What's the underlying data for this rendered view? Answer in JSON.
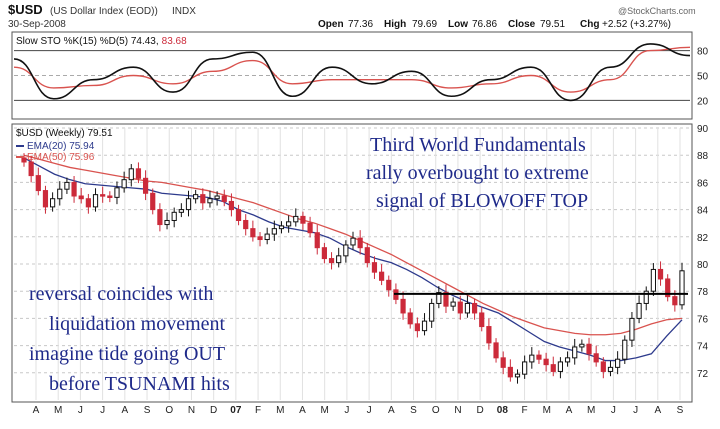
{
  "header": {
    "symbol": "$USD",
    "name": "(US Dollar Index (EOD))",
    "exchange": "INDX",
    "date": "30-Sep-2008",
    "open_label": "Open",
    "open_value": "77.36",
    "high_label": "High",
    "high_value": "79.69",
    "low_label": "Low",
    "low_value": "76.86",
    "close_label": "Close",
    "close_value": "79.51",
    "chg_label": "Chg",
    "chg_value": "+2.52 (+3.27%)",
    "watermark": "@StockCharts.com"
  },
  "colors": {
    "bull": "#111111",
    "bear": "#cc2a3a",
    "ema20": "#2d3a8c",
    "ema50": "#d9534f",
    "note": "#1f2a8a"
  },
  "chart_data": [
    {
      "type": "line",
      "title": "Slow STO %K(15) %D(5) 74.43, 83.68",
      "title_prefix": "Slow STO %K(15) %D(5) 74.43,",
      "title_d_value": "83.68",
      "x": [
        "Apr 07",
        "May 07",
        "Jun 07",
        "Jul 07",
        "Aug 07",
        "Sep 07",
        "Oct 07",
        "Nov 07",
        "Dec 07",
        "Jan 08",
        "Feb 08",
        "Mar 08",
        "Apr 08",
        "May 08",
        "Jun 08",
        "Jul 08",
        "Aug 08",
        "Sep 08"
      ],
      "ylim": [
        0,
        100
      ],
      "yticks": [
        20,
        50,
        80
      ],
      "series": [
        {
          "name": "%K",
          "values": [
            70,
            22,
            45,
            60,
            30,
            70,
            78,
            25,
            60,
            40,
            55,
            25,
            45,
            60,
            20,
            60,
            88,
            74
          ]
        },
        {
          "name": "%D",
          "values": [
            60,
            35,
            38,
            50,
            40,
            55,
            68,
            40,
            45,
            45,
            45,
            35,
            40,
            50,
            30,
            45,
            80,
            84
          ]
        }
      ]
    },
    {
      "type": "candlestick",
      "title": "$USD (Weekly) 79.51",
      "ylim": [
        70,
        90
      ],
      "yticks": [
        72,
        74,
        76,
        78,
        80,
        82,
        84,
        86,
        88,
        90
      ],
      "x_labels": [
        "A",
        "M",
        "J",
        "J",
        "A",
        "S",
        "O",
        "N",
        "D",
        "07",
        "F",
        "M",
        "A",
        "M",
        "J",
        "J",
        "A",
        "S",
        "O",
        "N",
        "D",
        "08",
        "F",
        "M",
        "A",
        "M",
        "J",
        "J",
        "A",
        "S"
      ],
      "closes": [
        87.5,
        86.5,
        85.4,
        84.2,
        84.8,
        85.5,
        86.0,
        85.0,
        84.8,
        84.2,
        85.1,
        85.0,
        84.9,
        85.6,
        86.2,
        87.0,
        86.3,
        85.2,
        84.0,
        82.9,
        83.2,
        83.8,
        84.0,
        84.8,
        85.1,
        84.5,
        84.8,
        85.0,
        84.6,
        84.0,
        83.2,
        82.6,
        82.0,
        81.8,
        82.2,
        82.6,
        82.8,
        83.1,
        83.5,
        83.0,
        82.3,
        81.2,
        80.4,
        80.1,
        80.6,
        81.4,
        81.9,
        81.2,
        80.1,
        79.4,
        78.8,
        78.1,
        77.4,
        76.4,
        75.6,
        75.1,
        75.8,
        77.1,
        77.9,
        76.9,
        77.2,
        76.4,
        77.1,
        76.4,
        75.4,
        74.2,
        73.1,
        72.4,
        71.7,
        71.9,
        72.8,
        73.3,
        73.0,
        72.6,
        72.1,
        72.8,
        73.1,
        73.9,
        74.1,
        73.4,
        72.8,
        72.1,
        72.4,
        73.0,
        74.4,
        76.0,
        77.1,
        78.0,
        79.6,
        78.9,
        77.6,
        77.0,
        79.5
      ],
      "series": [
        {
          "name": "EMA(20) 75.94",
          "values": [
            87.8,
            87.2,
            86.6,
            86.2,
            85.9,
            85.8,
            85.7,
            85.6,
            85.5,
            85.2,
            85.1,
            85.0,
            84.9,
            84.6,
            84.0,
            83.6,
            83.1,
            82.7,
            82.5,
            82.3,
            81.9,
            81.3,
            80.8,
            80.4,
            80.1,
            79.6,
            79.0,
            78.3,
            77.7,
            77.2,
            76.8,
            76.4,
            75.7,
            75.0,
            74.3,
            73.9,
            73.6,
            73.3,
            72.9,
            72.9,
            73.1,
            73.4,
            74.7,
            75.9
          ]
        },
        {
          "name": "EMA(50) 75.96",
          "values": [
            88.0,
            87.7,
            87.4,
            87.1,
            86.9,
            86.7,
            86.5,
            86.3,
            86.1,
            86.0,
            85.8,
            85.6,
            85.4,
            85.1,
            84.8,
            84.5,
            84.1,
            83.7,
            83.3,
            83.0,
            82.6,
            82.2,
            81.7,
            81.2,
            80.7,
            80.1,
            79.5,
            78.9,
            78.3,
            77.7,
            77.1,
            76.6,
            76.1,
            75.7,
            75.3,
            75.1,
            74.9,
            74.8,
            74.8,
            74.9,
            75.2,
            75.6,
            75.9,
            76.0
          ]
        }
      ],
      "hline": 77.8,
      "annotations": [
        {
          "lines": [
            "Third World Fundamentals",
            "rally overbought to extreme",
            "signal of BLOWOFF TOP"
          ]
        },
        {
          "lines": [
            "reversal coincides with",
            "liquidation movement",
            "imagine tide going OUT",
            "before TSUNAMI hits"
          ]
        }
      ]
    }
  ]
}
